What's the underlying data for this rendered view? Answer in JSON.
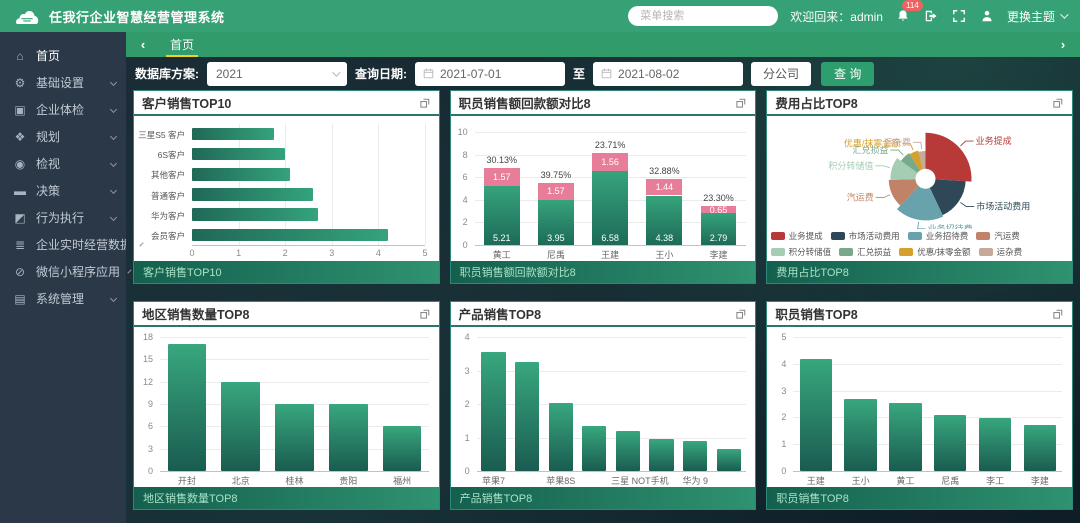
{
  "header": {
    "app_title": "任我行企业智慧经营管理系统",
    "search_placeholder": "菜单搜索",
    "welcome": "欢迎回来：admin",
    "notification_count": "114",
    "theme_switch": "更换主题",
    "icons": {
      "logo": "cloud-icon",
      "bell": "bell-icon",
      "logout": "logout-icon",
      "fullscreen": "fullscreen-icon",
      "user": "user-icon"
    }
  },
  "tabs": {
    "back": "‹",
    "forward": "›",
    "items": [
      {
        "label": "首页",
        "active": true
      }
    ]
  },
  "sidebar": {
    "items": [
      {
        "label": "首页",
        "icon": "home-icon",
        "glyph": "⌂",
        "expandable": false,
        "active": true
      },
      {
        "label": "基础设置",
        "icon": "settings-gear-icon",
        "glyph": "⚙",
        "expandable": true
      },
      {
        "label": "企业体检",
        "icon": "health-check-icon",
        "glyph": "▣",
        "expandable": true
      },
      {
        "label": "规划",
        "icon": "planning-icon",
        "glyph": "❖",
        "expandable": true
      },
      {
        "label": "检视",
        "icon": "inspect-icon",
        "glyph": "◉",
        "expandable": true
      },
      {
        "label": "决策",
        "icon": "decision-icon",
        "glyph": "▬",
        "expandable": true
      },
      {
        "label": "行为执行",
        "icon": "execution-icon",
        "glyph": "◩",
        "expandable": true
      },
      {
        "label": "企业实时经营数据",
        "icon": "realtime-data-icon",
        "glyph": "≣",
        "expandable": true
      },
      {
        "label": "微信小程序应用",
        "icon": "wechat-miniapp-icon",
        "glyph": "⊘",
        "expandable": true
      },
      {
        "label": "系统管理",
        "icon": "system-admin-icon",
        "glyph": "▤",
        "expandable": true
      }
    ]
  },
  "filters": {
    "scheme_label": "数据库方案:",
    "scheme_value": "2021",
    "date_label": "查询日期:",
    "date_from": "2021-07-01",
    "to_label": "至",
    "date_to": "2021-08-02",
    "branch_button": "分公司",
    "query_button": "查 询"
  },
  "panels": [
    {
      "title": "客户销售TOP10",
      "footer": "客户销售TOP10"
    },
    {
      "title": "职员销售额回款额对比8",
      "footer": "职员销售额回款额对比8"
    },
    {
      "title": "费用占比TOP8",
      "footer": "费用占比TOP8"
    },
    {
      "title": "地区销售数量TOP8",
      "footer": "地区销售数量TOP8"
    },
    {
      "title": "产品销售TOP8",
      "footer": "产品销售TOP8"
    },
    {
      "title": "职员销售TOP8",
      "footer": "职员销售TOP8"
    }
  ],
  "chart_data": [
    {
      "type": "bar",
      "orientation": "horizontal",
      "title": "客户销售TOP10",
      "categories": [
        "三星S5 客户",
        "6S客户",
        "其他客户",
        "普通客户",
        "华为客户",
        "会员客户"
      ],
      "values": [
        1.75,
        2.0,
        2.1,
        2.6,
        2.7,
        4.2
      ],
      "xlim": [
        0,
        5
      ],
      "xticks": [
        0,
        1,
        2,
        3,
        4,
        5
      ],
      "grid": true
    },
    {
      "type": "stacked-bar",
      "title": "职员销售额回款额对比8",
      "categories": [
        "黄工",
        "尼禹",
        "王建",
        "王小",
        "李建"
      ],
      "series": [
        {
          "name": "销售额",
          "color": "#36a37c",
          "values": [
            5.21,
            3.95,
            6.58,
            4.38,
            2.79
          ]
        },
        {
          "name": "回款额",
          "color": "#e87d9a",
          "values": [
            1.57,
            1.57,
            1.56,
            1.44,
            0.65
          ]
        }
      ],
      "percent_labels": [
        "30.13%",
        "39.75%",
        "23.71%",
        "32.88%",
        "23.30%"
      ],
      "ylim": [
        0,
        10
      ],
      "yticks": [
        0,
        2,
        4,
        6,
        8,
        10
      ],
      "grid": true
    },
    {
      "type": "pie",
      "subtype": "rose",
      "title": "费用占比TOP8",
      "legend_position": "bottom",
      "slices": [
        {
          "label": "业务提成",
          "value": 26,
          "color": "#b73a38"
        },
        {
          "label": "市场活动费用",
          "value": 17,
          "color": "#2e4857"
        },
        {
          "label": "业务招待费",
          "value": 19,
          "color": "#68a2ac"
        },
        {
          "label": "汽运费",
          "value": 12.5,
          "color": "#c18368"
        },
        {
          "label": "积分转储值",
          "value": 10.5,
          "color": "#a5cdb4"
        },
        {
          "label": "汇兑损益",
          "value": 6,
          "color": "#78a98a"
        },
        {
          "label": "优惠/抹零金额",
          "value": 5,
          "color": "#d5a02b"
        },
        {
          "label": "运杂费",
          "value": 4,
          "color": "#c7a99b"
        }
      ]
    },
    {
      "type": "bar",
      "title": "地区销售数量TOP8",
      "categories": [
        "开封",
        "北京",
        "桂林",
        "贵阳",
        "福州"
      ],
      "values": [
        17,
        12,
        9,
        9,
        6
      ],
      "ylim": [
        0,
        18
      ],
      "yticks": [
        0,
        3,
        6,
        9,
        12,
        15,
        18
      ],
      "grid": true
    },
    {
      "type": "bar",
      "title": "产品销售TOP8",
      "categories": [
        "苹果7",
        "",
        "苹果8S",
        "",
        "三星 NOT手机",
        "",
        "华为 9",
        ""
      ],
      "values": [
        3.55,
        3.25,
        2.02,
        1.33,
        1.2,
        0.97,
        0.9,
        0.67
      ],
      "ylim": [
        0,
        4
      ],
      "yticks": [
        0,
        1,
        2,
        3,
        4
      ],
      "grid": true
    },
    {
      "type": "bar",
      "title": "职员销售TOP8",
      "categories": [
        "王建",
        "王小",
        "黄工",
        "尼禹",
        "李工",
        "李建"
      ],
      "values": [
        4.18,
        2.68,
        2.55,
        2.1,
        1.98,
        1.73
      ],
      "ylim": [
        0,
        5
      ],
      "yticks": [
        0,
        1,
        2,
        3,
        4,
        5
      ],
      "grid": true
    }
  ]
}
